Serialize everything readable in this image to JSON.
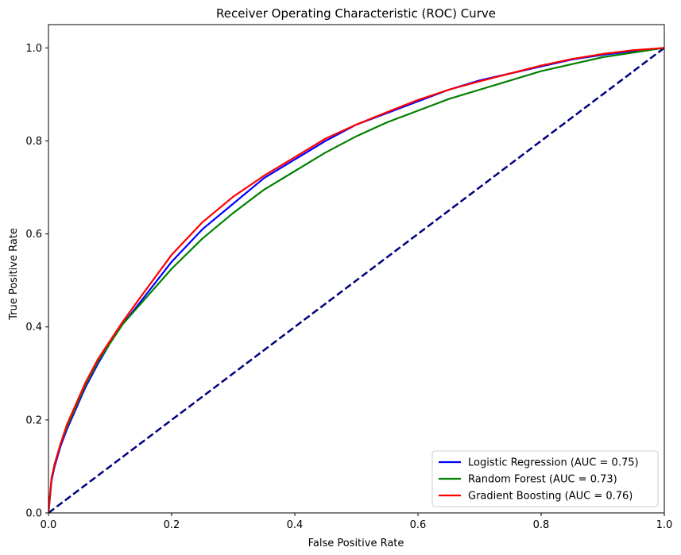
{
  "chart_data": {
    "type": "line",
    "title": "Receiver Operating Characteristic (ROC) Curve",
    "xlabel": "False Positive Rate",
    "ylabel": "True Positive Rate",
    "xlim": [
      0.0,
      1.0
    ],
    "ylim": [
      0.0,
      1.05
    ],
    "xticks": [
      "0.0",
      "0.2",
      "0.4",
      "0.6",
      "0.8",
      "1.0"
    ],
    "yticks": [
      "0.0",
      "0.2",
      "0.4",
      "0.6",
      "0.8",
      "1.0"
    ],
    "grid": false,
    "legend_position": "lower-right",
    "reference_line": {
      "color": "#000080",
      "style": "dashed",
      "points": [
        [
          0.0,
          0.0
        ],
        [
          1.0,
          1.0
        ]
      ]
    },
    "series": [
      {
        "name": "Logistic Regression (AUC = 0.75)",
        "color": "#0000ff",
        "points": [
          [
            0.0,
            0.0
          ],
          [
            0.005,
            0.07
          ],
          [
            0.01,
            0.1
          ],
          [
            0.02,
            0.145
          ],
          [
            0.03,
            0.18
          ],
          [
            0.04,
            0.21
          ],
          [
            0.06,
            0.27
          ],
          [
            0.08,
            0.32
          ],
          [
            0.1,
            0.365
          ],
          [
            0.12,
            0.405
          ],
          [
            0.15,
            0.455
          ],
          [
            0.2,
            0.54
          ],
          [
            0.25,
            0.61
          ],
          [
            0.3,
            0.665
          ],
          [
            0.35,
            0.72
          ],
          [
            0.4,
            0.76
          ],
          [
            0.45,
            0.8
          ],
          [
            0.5,
            0.835
          ],
          [
            0.55,
            0.86
          ],
          [
            0.6,
            0.885
          ],
          [
            0.65,
            0.91
          ],
          [
            0.7,
            0.93
          ],
          [
            0.75,
            0.945
          ],
          [
            0.8,
            0.96
          ],
          [
            0.85,
            0.975
          ],
          [
            0.9,
            0.985
          ],
          [
            0.95,
            0.993
          ],
          [
            1.0,
            1.0
          ]
        ]
      },
      {
        "name": "Random Forest (AUC = 0.73)",
        "color": "#008000",
        "points": [
          [
            0.0,
            0.0
          ],
          [
            0.005,
            0.075
          ],
          [
            0.01,
            0.105
          ],
          [
            0.02,
            0.15
          ],
          [
            0.03,
            0.185
          ],
          [
            0.04,
            0.215
          ],
          [
            0.06,
            0.275
          ],
          [
            0.08,
            0.325
          ],
          [
            0.1,
            0.365
          ],
          [
            0.12,
            0.405
          ],
          [
            0.15,
            0.45
          ],
          [
            0.2,
            0.525
          ],
          [
            0.25,
            0.59
          ],
          [
            0.3,
            0.645
          ],
          [
            0.35,
            0.695
          ],
          [
            0.4,
            0.735
          ],
          [
            0.45,
            0.775
          ],
          [
            0.5,
            0.81
          ],
          [
            0.55,
            0.84
          ],
          [
            0.6,
            0.865
          ],
          [
            0.65,
            0.89
          ],
          [
            0.7,
            0.91
          ],
          [
            0.75,
            0.93
          ],
          [
            0.8,
            0.95
          ],
          [
            0.85,
            0.965
          ],
          [
            0.9,
            0.98
          ],
          [
            0.95,
            0.99
          ],
          [
            1.0,
            1.0
          ]
        ]
      },
      {
        "name": "Gradient Boosting (AUC = 0.76)",
        "color": "#ff0000",
        "points": [
          [
            0.0,
            0.0
          ],
          [
            0.005,
            0.075
          ],
          [
            0.01,
            0.105
          ],
          [
            0.02,
            0.15
          ],
          [
            0.03,
            0.19
          ],
          [
            0.04,
            0.22
          ],
          [
            0.06,
            0.28
          ],
          [
            0.08,
            0.33
          ],
          [
            0.1,
            0.37
          ],
          [
            0.12,
            0.41
          ],
          [
            0.15,
            0.465
          ],
          [
            0.2,
            0.555
          ],
          [
            0.25,
            0.625
          ],
          [
            0.3,
            0.68
          ],
          [
            0.35,
            0.725
          ],
          [
            0.4,
            0.765
          ],
          [
            0.45,
            0.805
          ],
          [
            0.5,
            0.835
          ],
          [
            0.55,
            0.862
          ],
          [
            0.6,
            0.888
          ],
          [
            0.65,
            0.91
          ],
          [
            0.7,
            0.928
          ],
          [
            0.75,
            0.945
          ],
          [
            0.8,
            0.962
          ],
          [
            0.85,
            0.976
          ],
          [
            0.9,
            0.987
          ],
          [
            0.95,
            0.995
          ],
          [
            1.0,
            1.0
          ]
        ]
      }
    ]
  }
}
